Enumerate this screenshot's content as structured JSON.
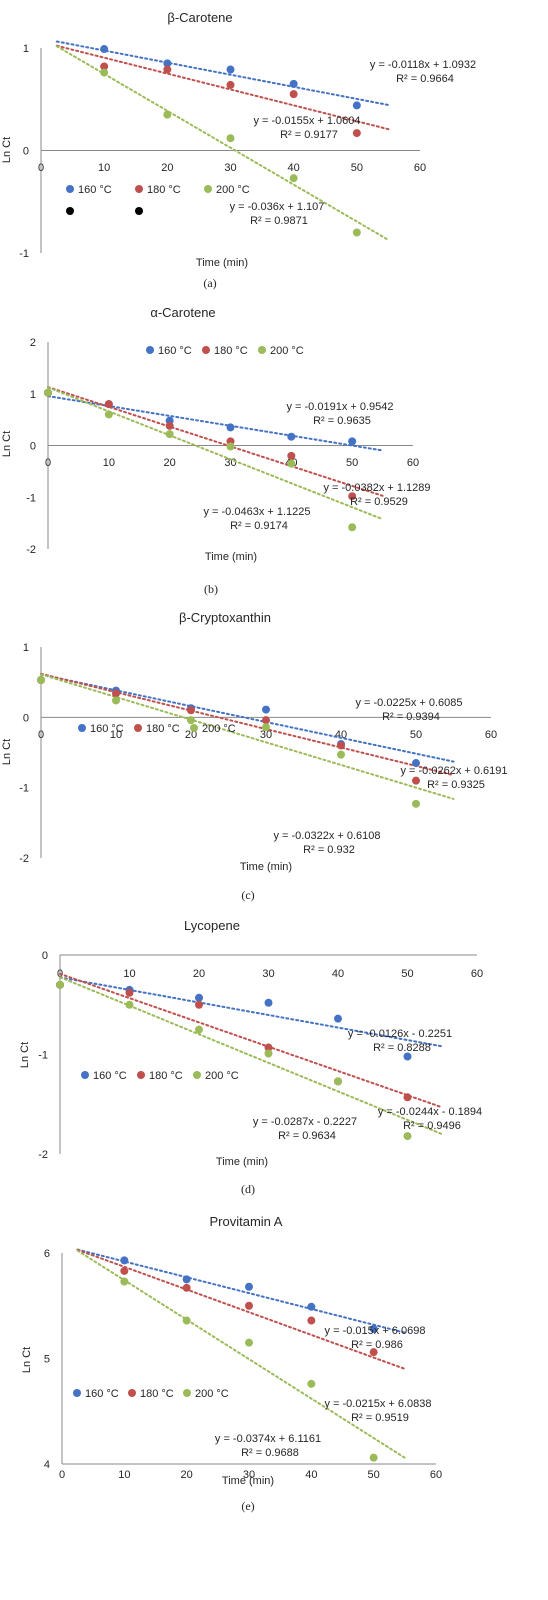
{
  "colors": {
    "s160": "#4472C4",
    "s180": "#C0504D",
    "s200": "#9BBB59",
    "axis": "#888888",
    "text": "#262626"
  },
  "chart_data": [
    {
      "type": "scatter",
      "title": "β-Carotene",
      "xlabel": "Time (min)",
      "ylabel": "Ln Ct",
      "caption": "(a)",
      "xlim": [
        0,
        60
      ],
      "ylim": [
        -1,
        1
      ],
      "xticks": [
        "0",
        "10",
        "20",
        "30",
        "40",
        "50",
        "60"
      ],
      "yticks": [
        "-1",
        "0",
        "1"
      ],
      "legend": [
        "160 °C",
        "180 °C",
        "200 °C"
      ],
      "series": [
        {
          "name": "160 °C",
          "x": [
            10,
            20,
            30,
            40,
            50
          ],
          "y": [
            0.99,
            0.85,
            0.79,
            0.65,
            0.44
          ],
          "trend_slope": -0.0118,
          "trend_intercept": 1.0932
        },
        {
          "name": "180 °C",
          "x": [
            10,
            20,
            30,
            40,
            50
          ],
          "y": [
            0.82,
            0.79,
            0.64,
            0.55,
            0.17
          ],
          "trend_slope": -0.0155,
          "trend_intercept": 1.0604
        },
        {
          "name": "200 °C",
          "x": [
            10,
            20,
            30,
            40,
            50
          ],
          "y": [
            0.76,
            0.35,
            0.12,
            -0.27,
            -0.8
          ],
          "trend_slope": -0.036,
          "trend_intercept": 1.107
        }
      ],
      "annotations": [
        {
          "eq": "y = -0.0118x + 1.0932",
          "r2": "R² = 0.9664"
        },
        {
          "eq": "y = -0.0155x + 1.0604",
          "r2": "R² = 0.9177"
        },
        {
          "eq": "y = -0.036x + 1.107",
          "r2": "R² = 0.9871"
        }
      ]
    },
    {
      "type": "scatter",
      "title": "α-Carotene",
      "xlabel": "Time (min)",
      "ylabel": "Ln Ct",
      "caption": "(b)",
      "xlim": [
        0,
        60
      ],
      "ylim": [
        -2,
        2
      ],
      "xticks": [
        "0",
        "10",
        "20",
        "30",
        "40",
        "50",
        "60"
      ],
      "yticks": [
        "-2",
        "-1",
        "0",
        "1",
        "2"
      ],
      "legend": [
        "160 °C",
        "180 °C",
        "200 °C"
      ],
      "series": [
        {
          "name": "160 °C",
          "x": [
            0,
            10,
            20,
            30,
            40,
            50
          ],
          "y": [
            1.02,
            0.8,
            0.48,
            0.35,
            0.17,
            0.08
          ],
          "trend_slope": -0.0191,
          "trend_intercept": 0.9542
        },
        {
          "name": "180 °C",
          "x": [
            0,
            10,
            20,
            30,
            40,
            50
          ],
          "y": [
            1.02,
            0.8,
            0.38,
            0.08,
            -0.2,
            -0.98
          ],
          "trend_slope": -0.0382,
          "trend_intercept": 1.1289
        },
        {
          "name": "200 °C",
          "x": [
            0,
            10,
            20,
            30,
            40,
            50
          ],
          "y": [
            1.02,
            0.6,
            0.22,
            -0.02,
            -0.35,
            -1.58
          ],
          "trend_slope": -0.0463,
          "trend_intercept": 1.1225
        }
      ],
      "annotations": [
        {
          "eq": "y = -0.0191x + 0.9542",
          "r2": "R² = 0.9635"
        },
        {
          "eq": "y = -0.0382x + 1.1289",
          "r2": "R² = 0.9529"
        },
        {
          "eq": "y = -0.0463x + 1.1225",
          "r2": "R² = 0.9174"
        }
      ]
    },
    {
      "type": "scatter",
      "title": "β-Cryptoxanthin",
      "xlabel": "Time (min)",
      "ylabel": "Ln Ct",
      "caption": "(c)",
      "xlim": [
        0,
        60
      ],
      "ylim": [
        -2,
        1
      ],
      "xticks": [
        "0",
        "10",
        "20",
        "30",
        "40",
        "50",
        "60"
      ],
      "yticks": [
        "-2",
        "-1",
        "0",
        "1"
      ],
      "legend": [
        "160 °C",
        "180 °C",
        "200 °C"
      ],
      "series": [
        {
          "name": "160 °C",
          "x": [
            0,
            10,
            20,
            30,
            40,
            50
          ],
          "y": [
            0.53,
            0.38,
            0.13,
            0.11,
            -0.38,
            -0.65
          ],
          "trend_slope": -0.0225,
          "trend_intercept": 0.6085
        },
        {
          "name": "180 °C",
          "x": [
            0,
            10,
            20,
            30,
            40,
            50
          ],
          "y": [
            0.53,
            0.34,
            0.1,
            -0.04,
            -0.4,
            -0.9
          ],
          "trend_slope": -0.0262,
          "trend_intercept": 0.6191
        },
        {
          "name": "200 °C",
          "x": [
            0,
            10,
            20,
            30,
            40,
            50
          ],
          "y": [
            0.53,
            0.24,
            -0.04,
            -0.14,
            -0.53,
            -1.23
          ],
          "trend_slope": -0.0322,
          "trend_intercept": 0.6108
        }
      ],
      "annotations": [
        {
          "eq": "y = -0.0225x + 0.6085",
          "r2": "R² = 0.9394"
        },
        {
          "eq": "y = -0.0262x + 0.6191",
          "r2": "R² = 0.9325"
        },
        {
          "eq": "y = -0.0322x + 0.6108",
          "r2": "R² = 0.932"
        }
      ]
    },
    {
      "type": "scatter",
      "title": "Lycopene",
      "xlabel": "Time (min)",
      "ylabel": "Ln Ct",
      "caption": "(d)",
      "xlim": [
        0,
        60
      ],
      "ylim": [
        -2,
        0
      ],
      "xticks": [
        "0",
        "10",
        "20",
        "30",
        "40",
        "50",
        "60"
      ],
      "yticks": [
        "-2",
        "-1",
        "0"
      ],
      "legend": [
        "160 °C",
        "180 °C",
        "200 °C"
      ],
      "series": [
        {
          "name": "160 °C",
          "x": [
            0,
            10,
            20,
            30,
            40,
            50
          ],
          "y": [
            -0.3,
            -0.35,
            -0.43,
            -0.48,
            -0.64,
            -1.02
          ],
          "trend_slope": -0.0126,
          "trend_intercept": -0.2251
        },
        {
          "name": "180 °C",
          "x": [
            0,
            10,
            20,
            30,
            40,
            50
          ],
          "y": [
            -0.3,
            -0.38,
            -0.5,
            -0.93,
            -1.27,
            -1.43
          ],
          "trend_slope": -0.0244,
          "trend_intercept": -0.1894
        },
        {
          "name": "200 °C",
          "x": [
            0,
            10,
            20,
            30,
            40,
            50
          ],
          "y": [
            -0.3,
            -0.5,
            -0.75,
            -0.99,
            -1.27,
            -1.82
          ],
          "trend_slope": -0.0287,
          "trend_intercept": -0.2227
        }
      ],
      "annotations": [
        {
          "eq": "y = -0.0126x - 0.2251",
          "r2": "R² = 0.8288"
        },
        {
          "eq": "y = -0.0244x - 0.1894",
          "r2": "R² = 0.9496"
        },
        {
          "eq": "y = -0.0287x - 0.2227",
          "r2": "R² = 0.9634"
        }
      ]
    },
    {
      "type": "scatter",
      "title": "Provitamin A",
      "xlabel": "Time (min)",
      "ylabel": "Ln Ct",
      "caption": "(e)",
      "xlim": [
        0,
        60
      ],
      "ylim": [
        4,
        6
      ],
      "xticks": [
        "0",
        "10",
        "20",
        "30",
        "40",
        "50",
        "60"
      ],
      "yticks": [
        "4",
        "5",
        "6"
      ],
      "legend": [
        "160 °C",
        "180 °C",
        "200 °C"
      ],
      "series": [
        {
          "name": "160 °C",
          "x": [
            10,
            20,
            30,
            40,
            50
          ],
          "y": [
            5.93,
            5.75,
            5.68,
            5.49,
            5.28
          ],
          "trend_slope": -0.015,
          "trend_intercept": 6.0698
        },
        {
          "name": "180 °C",
          "x": [
            10,
            20,
            30,
            40,
            50
          ],
          "y": [
            5.83,
            5.67,
            5.5,
            5.36,
            5.06
          ],
          "trend_slope": -0.0215,
          "trend_intercept": 6.0838
        },
        {
          "name": "200 °C",
          "x": [
            10,
            20,
            30,
            40,
            50
          ],
          "y": [
            5.73,
            5.36,
            5.15,
            4.76,
            4.06
          ],
          "trend_slope": -0.0374,
          "trend_intercept": 6.1161
        }
      ],
      "annotations": [
        {
          "eq": "y = -0.015x + 6.0698",
          "r2": "R² = 0.986"
        },
        {
          "eq": "y = -0.0215x + 6.0838",
          "r2": "R² = 0.9519"
        },
        {
          "eq": "y = -0.0374x + 6.1161",
          "r2": "R² = 0.9688"
        }
      ]
    }
  ]
}
